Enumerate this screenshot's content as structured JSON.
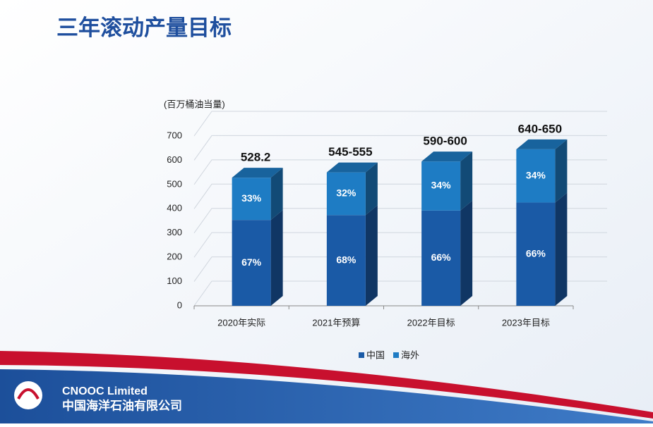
{
  "chart_data": {
    "type": "bar3d_stacked",
    "title": "三年滚动产量目标",
    "y_label": "(百万桶油当量)",
    "categories": [
      "2020年实际",
      "2021年预算",
      "2022年目标",
      "2023年目标"
    ],
    "totals": {
      "values": [
        528.2,
        550,
        595,
        645
      ],
      "value_labels": [
        "528.2",
        "545-555",
        "590-600",
        "640-650"
      ]
    },
    "series": [
      {
        "name": "中国",
        "color": "#1a5aa6",
        "values": [
          67,
          68,
          66,
          66
        ],
        "value_labels": [
          "67%",
          "68%",
          "66%",
          "66%"
        ]
      },
      {
        "name": "海外",
        "color": "#1e7cc4",
        "values": [
          33,
          32,
          34,
          34
        ],
        "value_labels": [
          "33%",
          "32%",
          "34%",
          "34%"
        ]
      }
    ],
    "ylim": [
      0,
      700
    ],
    "yticks": [
      0,
      100,
      200,
      300,
      400,
      500,
      600,
      700
    ],
    "grid": true,
    "legend": "bottom"
  },
  "footer": {
    "company_en": "CNOOC Limited",
    "company_cn": "中国海洋石油有限公司"
  }
}
